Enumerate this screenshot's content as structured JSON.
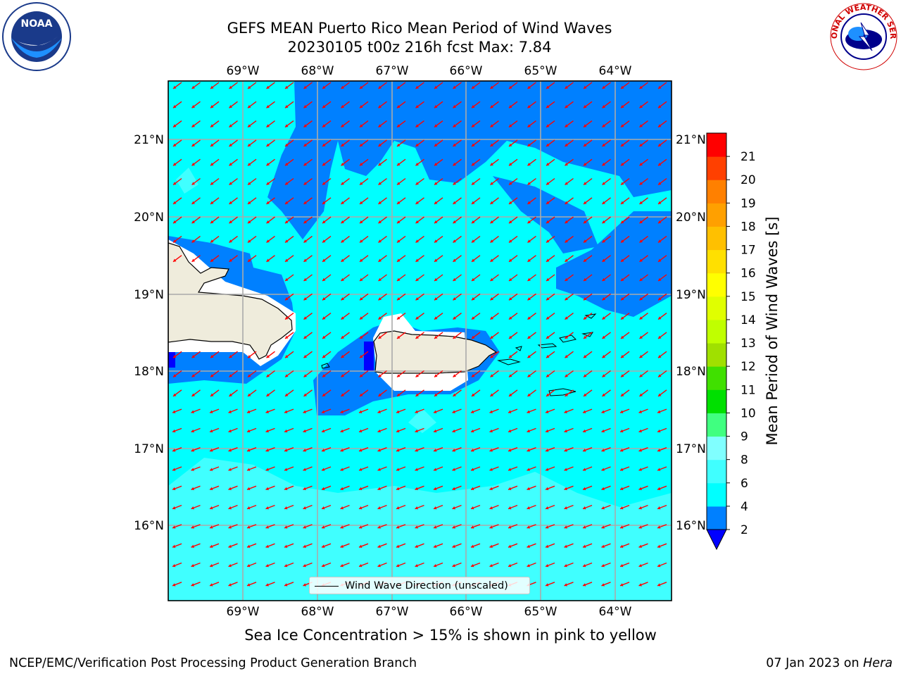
{
  "header": {
    "title_line1": "GEFS MEAN Puerto Rico Mean Period of Wind Waves",
    "title_line2": "20230105 t00z 216h fcst   Max: 7.84"
  },
  "logos": {
    "left": {
      "name": "noaa-logo",
      "text": "NOAA"
    },
    "right": {
      "name": "nws-logo",
      "text": "NATIONAL WEATHER SERVICE"
    }
  },
  "map": {
    "lon_labels": [
      "69°W",
      "68°W",
      "67°W",
      "66°W",
      "65°W",
      "64°W"
    ],
    "lat_labels": [
      "21°N",
      "20°N",
      "19°N",
      "18°N",
      "17°N",
      "16°N"
    ],
    "legend": "Wind Wave Direction (unscaled)",
    "arrow_color": "#ff0000",
    "land_color": "#efecdc",
    "sea_colors": {
      "2-4": "#0080ff",
      "4-6": "#00ffff",
      "6-8": "#40ffff"
    }
  },
  "colorbar": {
    "label": "Mean Period of Wind Waves [s]",
    "ticks": [
      "2",
      "4",
      "6",
      "8",
      "9",
      "10",
      "11",
      "12",
      "13",
      "14",
      "15",
      "16",
      "17",
      "18",
      "19",
      "20",
      "21"
    ],
    "colors": [
      "#0080ff",
      "#00ffff",
      "#40ffff",
      "#80ffff",
      "#40ff80",
      "#00e000",
      "#40e000",
      "#a0e000",
      "#c0ff00",
      "#e0ff00",
      "#ffff00",
      "#ffe000",
      "#ffc000",
      "#ffa000",
      "#ff8000",
      "#ff4000",
      "#ff0000"
    ],
    "under_color": "#0000ff"
  },
  "footer": {
    "ice_note": "Sea Ice Concentration > 15% is shown in pink to yellow",
    "left": "NCEP/EMC/Verification Post Processing Product Generation Branch",
    "date": "07 Jan 2023 on ",
    "host": "Hera"
  }
}
